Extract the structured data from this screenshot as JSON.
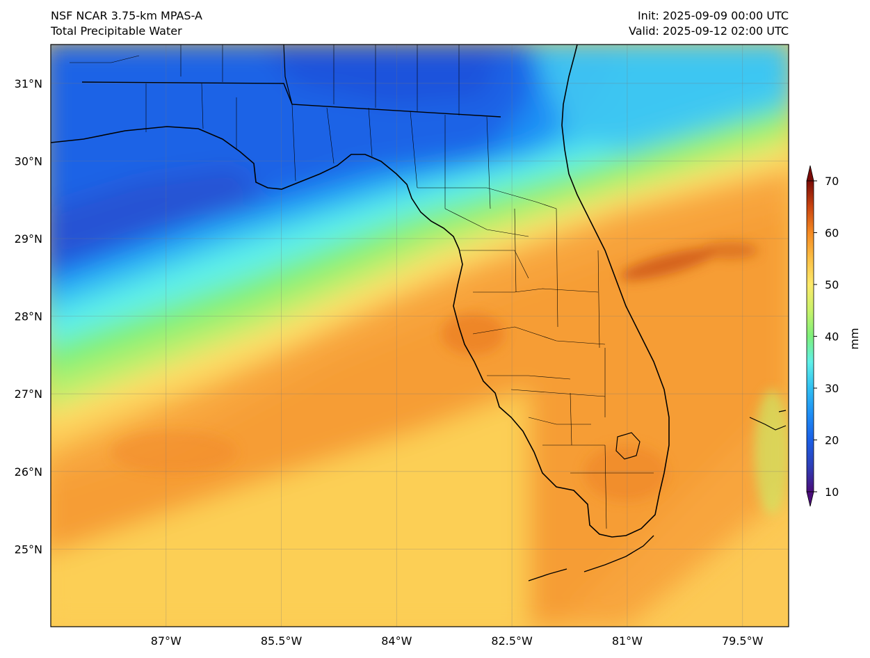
{
  "header": {
    "model": "NSF NCAR 3.75-km MPAS-A",
    "field": "Total Precipitable Water",
    "init": "Init: 2025-09-09 00:00 UTC",
    "valid": "Valid: 2025-09-12 02:00 UTC"
  },
  "map": {
    "lon_range": [
      -88.5,
      -78.9
    ],
    "lat_range": [
      24.0,
      31.5
    ],
    "lon_ticks": [
      {
        "value": -87,
        "label": "87°W"
      },
      {
        "value": -85.5,
        "label": "85.5°W"
      },
      {
        "value": -84,
        "label": "84°W"
      },
      {
        "value": -82.5,
        "label": "82.5°W"
      },
      {
        "value": -81,
        "label": "81°W"
      },
      {
        "value": -79.5,
        "label": "79.5°W"
      }
    ],
    "lat_ticks": [
      {
        "value": 31,
        "label": "31°N"
      },
      {
        "value": 30,
        "label": "30°N"
      },
      {
        "value": 29,
        "label": "29°N"
      },
      {
        "value": 28,
        "label": "28°N"
      },
      {
        "value": 27,
        "label": "27°N"
      },
      {
        "value": 26,
        "label": "26°N"
      },
      {
        "value": 25,
        "label": "25°N"
      }
    ]
  },
  "colorbar": {
    "unit": "mm",
    "min": 10,
    "max": 70,
    "ticks": [
      "10",
      "20",
      "30",
      "40",
      "50",
      "60",
      "70"
    ],
    "colormap": [
      {
        "value": 10,
        "color": "#4a0d7a"
      },
      {
        "value": 15,
        "color": "#2e3fb8"
      },
      {
        "value": 20,
        "color": "#1a5fe6"
      },
      {
        "value": 25,
        "color": "#1e8ef5"
      },
      {
        "value": 30,
        "color": "#30bff2"
      },
      {
        "value": 35,
        "color": "#5ff0e8"
      },
      {
        "value": 40,
        "color": "#7ef07a"
      },
      {
        "value": 45,
        "color": "#c8f26a"
      },
      {
        "value": 50,
        "color": "#fde96a"
      },
      {
        "value": 55,
        "color": "#fbbf45"
      },
      {
        "value": 60,
        "color": "#f58a22"
      },
      {
        "value": 65,
        "color": "#c94410"
      },
      {
        "value": 70,
        "color": "#7a0b07"
      }
    ]
  }
}
